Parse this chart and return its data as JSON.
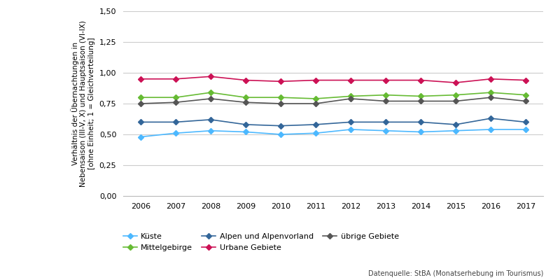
{
  "years": [
    2006,
    2007,
    2008,
    2009,
    2010,
    2011,
    2012,
    2013,
    2014,
    2015,
    2016,
    2017
  ],
  "series_order": [
    "Küste",
    "Urbane Gebiete",
    "Mittelgebirge",
    "übrige Gebiete",
    "Alpen und Alpenvorland"
  ],
  "series": {
    "Küste": {
      "values": [
        0.48,
        0.51,
        0.53,
        0.52,
        0.5,
        0.51,
        0.54,
        0.53,
        0.52,
        0.53,
        0.54,
        0.54
      ],
      "color": "#4CB8FF",
      "marker": "D",
      "markersize": 4
    },
    "Mittelgebirge": {
      "values": [
        0.8,
        0.8,
        0.84,
        0.8,
        0.8,
        0.79,
        0.81,
        0.82,
        0.81,
        0.82,
        0.84,
        0.82
      ],
      "color": "#66BB33",
      "marker": "D",
      "markersize": 4
    },
    "Alpen und Alpenvorland": {
      "values": [
        0.6,
        0.6,
        0.62,
        0.58,
        0.57,
        0.58,
        0.6,
        0.6,
        0.6,
        0.58,
        0.63,
        0.6
      ],
      "color": "#336699",
      "marker": "D",
      "markersize": 4
    },
    "Urbane Gebiete": {
      "values": [
        0.95,
        0.95,
        0.97,
        0.94,
        0.93,
        0.94,
        0.94,
        0.94,
        0.94,
        0.92,
        0.95,
        0.94
      ],
      "color": "#CC1155",
      "marker": "D",
      "markersize": 4
    },
    "übrige Gebiete": {
      "values": [
        0.75,
        0.76,
        0.79,
        0.76,
        0.75,
        0.75,
        0.79,
        0.77,
        0.77,
        0.77,
        0.8,
        0.77
      ],
      "color": "#555555",
      "marker": "D",
      "markersize": 4
    }
  },
  "ylim": [
    0.0,
    1.5
  ],
  "yticks": [
    0.0,
    0.25,
    0.5,
    0.75,
    1.0,
    1.25,
    1.5
  ],
  "ytick_labels": [
    "0,00",
    "0,25",
    "0,50",
    "0,75",
    "1,00",
    "1,25",
    "1,50"
  ],
  "ylabel": "Verhältnis der Übernachtungen in\nNebensaison (III-V, X) und Hauptsaison (VI-IX)\n[ohne Einheit; 1 = Gleichverteilung]",
  "source_text": "Datenquelle: StBA (Monatserhebung im Tourismus)",
  "background_color": "#FFFFFF",
  "grid_color": "#CCCCCC",
  "legend_row1": [
    "Küste",
    "Mittelgebirge",
    "Alpen und Alpenvorland"
  ],
  "legend_row2": [
    "Urbane Gebiete",
    "übrige Gebiete"
  ]
}
